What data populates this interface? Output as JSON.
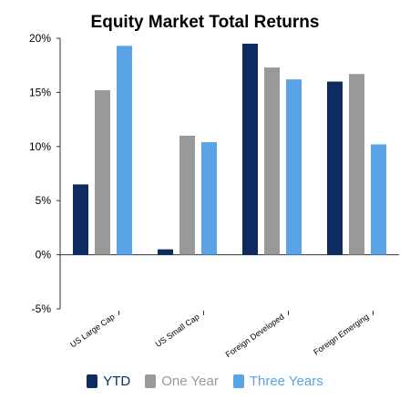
{
  "chart_data": {
    "type": "bar",
    "title": "Equity Market Total Returns",
    "xlabel": "",
    "ylabel": "",
    "categories": [
      "US Large Cap",
      "US Small Cap",
      "Foreign Developed",
      "Foreign Emerging"
    ],
    "series": [
      {
        "name": "YTD",
        "values": [
          6.5,
          0.5,
          19.5,
          16.0
        ],
        "color": "#0d2b5e"
      },
      {
        "name": "One Year",
        "values": [
          15.2,
          11.0,
          17.3,
          16.7
        ],
        "color": "#999999"
      },
      {
        "name": "Three Years",
        "values": [
          19.3,
          10.4,
          16.2,
          10.2
        ],
        "color": "#5aa3e6"
      }
    ],
    "ylim": [
      -5,
      20
    ],
    "yticks": [
      -5,
      0,
      5,
      10,
      15,
      20
    ],
    "ytick_labels": [
      "-5%",
      "0%",
      "5%",
      "10%",
      "15%",
      "20%"
    ],
    "grid": false,
    "legend_position": "bottom"
  }
}
